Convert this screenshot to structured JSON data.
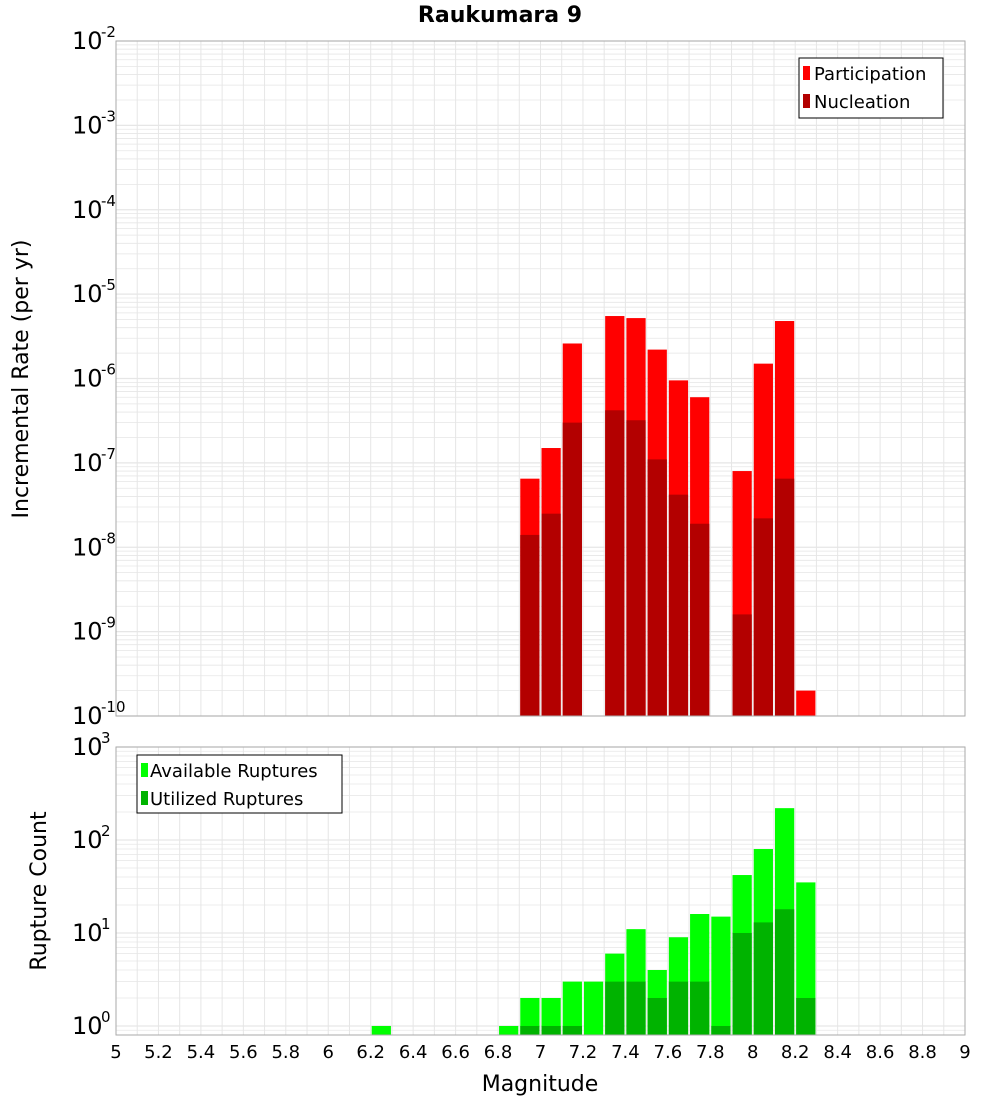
{
  "colors": {
    "participation": "#ff0000",
    "nucleation": "#b30000",
    "available": "#00ff00",
    "utilized": "#00b300",
    "grid": "#e6e6e6",
    "frame": "#aaaaaa"
  },
  "chart_data": [
    {
      "type": "bar",
      "title": "Raukumara 9",
      "xlabel": "",
      "ylabel": "Incremental Rate (per yr)",
      "yscale": "log",
      "ylim": [
        1e-10,
        0.01
      ],
      "xlim": [
        5,
        9
      ],
      "y_ticks": [
        {
          "base": "10",
          "exp": "-2"
        },
        {
          "base": "10",
          "exp": "-3"
        },
        {
          "base": "10",
          "exp": "-4"
        },
        {
          "base": "10",
          "exp": "-5"
        },
        {
          "base": "10",
          "exp": "-6"
        },
        {
          "base": "10",
          "exp": "-7"
        },
        {
          "base": "10",
          "exp": "-8"
        },
        {
          "base": "10",
          "exp": "-9"
        },
        {
          "base": "10",
          "exp": "-10"
        }
      ],
      "legend": {
        "position": "top-right",
        "entries": [
          "Participation",
          "Nucleation"
        ]
      },
      "grid": true,
      "x": [
        6.95,
        7.05,
        7.15,
        7.25,
        7.35,
        7.45,
        7.55,
        7.65,
        7.75,
        7.85,
        7.95,
        8.05,
        8.15,
        8.25
      ],
      "series": [
        {
          "name": "Participation",
          "values": [
            6.5e-08,
            1.5e-07,
            2.6e-06,
            null,
            5.5e-06,
            5.2e-06,
            2.2e-06,
            9.5e-07,
            6e-07,
            null,
            8e-08,
            1.5e-06,
            4.8e-06,
            2e-10
          ]
        },
        {
          "name": "Nucleation",
          "values": [
            1.4e-08,
            2.5e-08,
            3e-07,
            null,
            4.2e-07,
            3.2e-07,
            1.1e-07,
            4.2e-08,
            1.9e-08,
            null,
            1.6e-09,
            2.2e-08,
            6.5e-08,
            null
          ]
        }
      ]
    },
    {
      "type": "bar",
      "title": "",
      "xlabel": "Magnitude",
      "ylabel": "Rupture Count",
      "yscale": "log",
      "ylim": [
        0.8,
        1000
      ],
      "xlim": [
        5,
        9
      ],
      "y_ticks": [
        {
          "base": "10",
          "exp": "3"
        },
        {
          "base": "10",
          "exp": "2"
        },
        {
          "base": "10",
          "exp": "1"
        },
        {
          "base": "10",
          "exp": "0"
        }
      ],
      "x_ticks": [
        "5",
        "5.2",
        "5.4",
        "5.6",
        "5.8",
        "6",
        "6.2",
        "6.4",
        "6.6",
        "6.8",
        "7",
        "7.2",
        "7.4",
        "7.6",
        "7.8",
        "8",
        "8.2",
        "8.4",
        "8.6",
        "8.8",
        "9"
      ],
      "legend": {
        "position": "top-left",
        "entries": [
          "Available Ruptures",
          "Utilized Ruptures"
        ]
      },
      "grid": true,
      "x": [
        6.25,
        6.85,
        6.95,
        7.05,
        7.15,
        7.25,
        7.35,
        7.45,
        7.55,
        7.65,
        7.75,
        7.85,
        7.95,
        8.05,
        8.15,
        8.25
      ],
      "series": [
        {
          "name": "Available Ruptures",
          "values": [
            1,
            1,
            2,
            2,
            3,
            3,
            6,
            11,
            4,
            9,
            16,
            15,
            42,
            80,
            220,
            35
          ]
        },
        {
          "name": "Utilized Ruptures",
          "values": [
            null,
            null,
            1,
            1,
            1,
            null,
            3,
            3,
            2,
            3,
            3,
            1,
            10,
            13,
            18,
            2
          ]
        }
      ]
    }
  ]
}
